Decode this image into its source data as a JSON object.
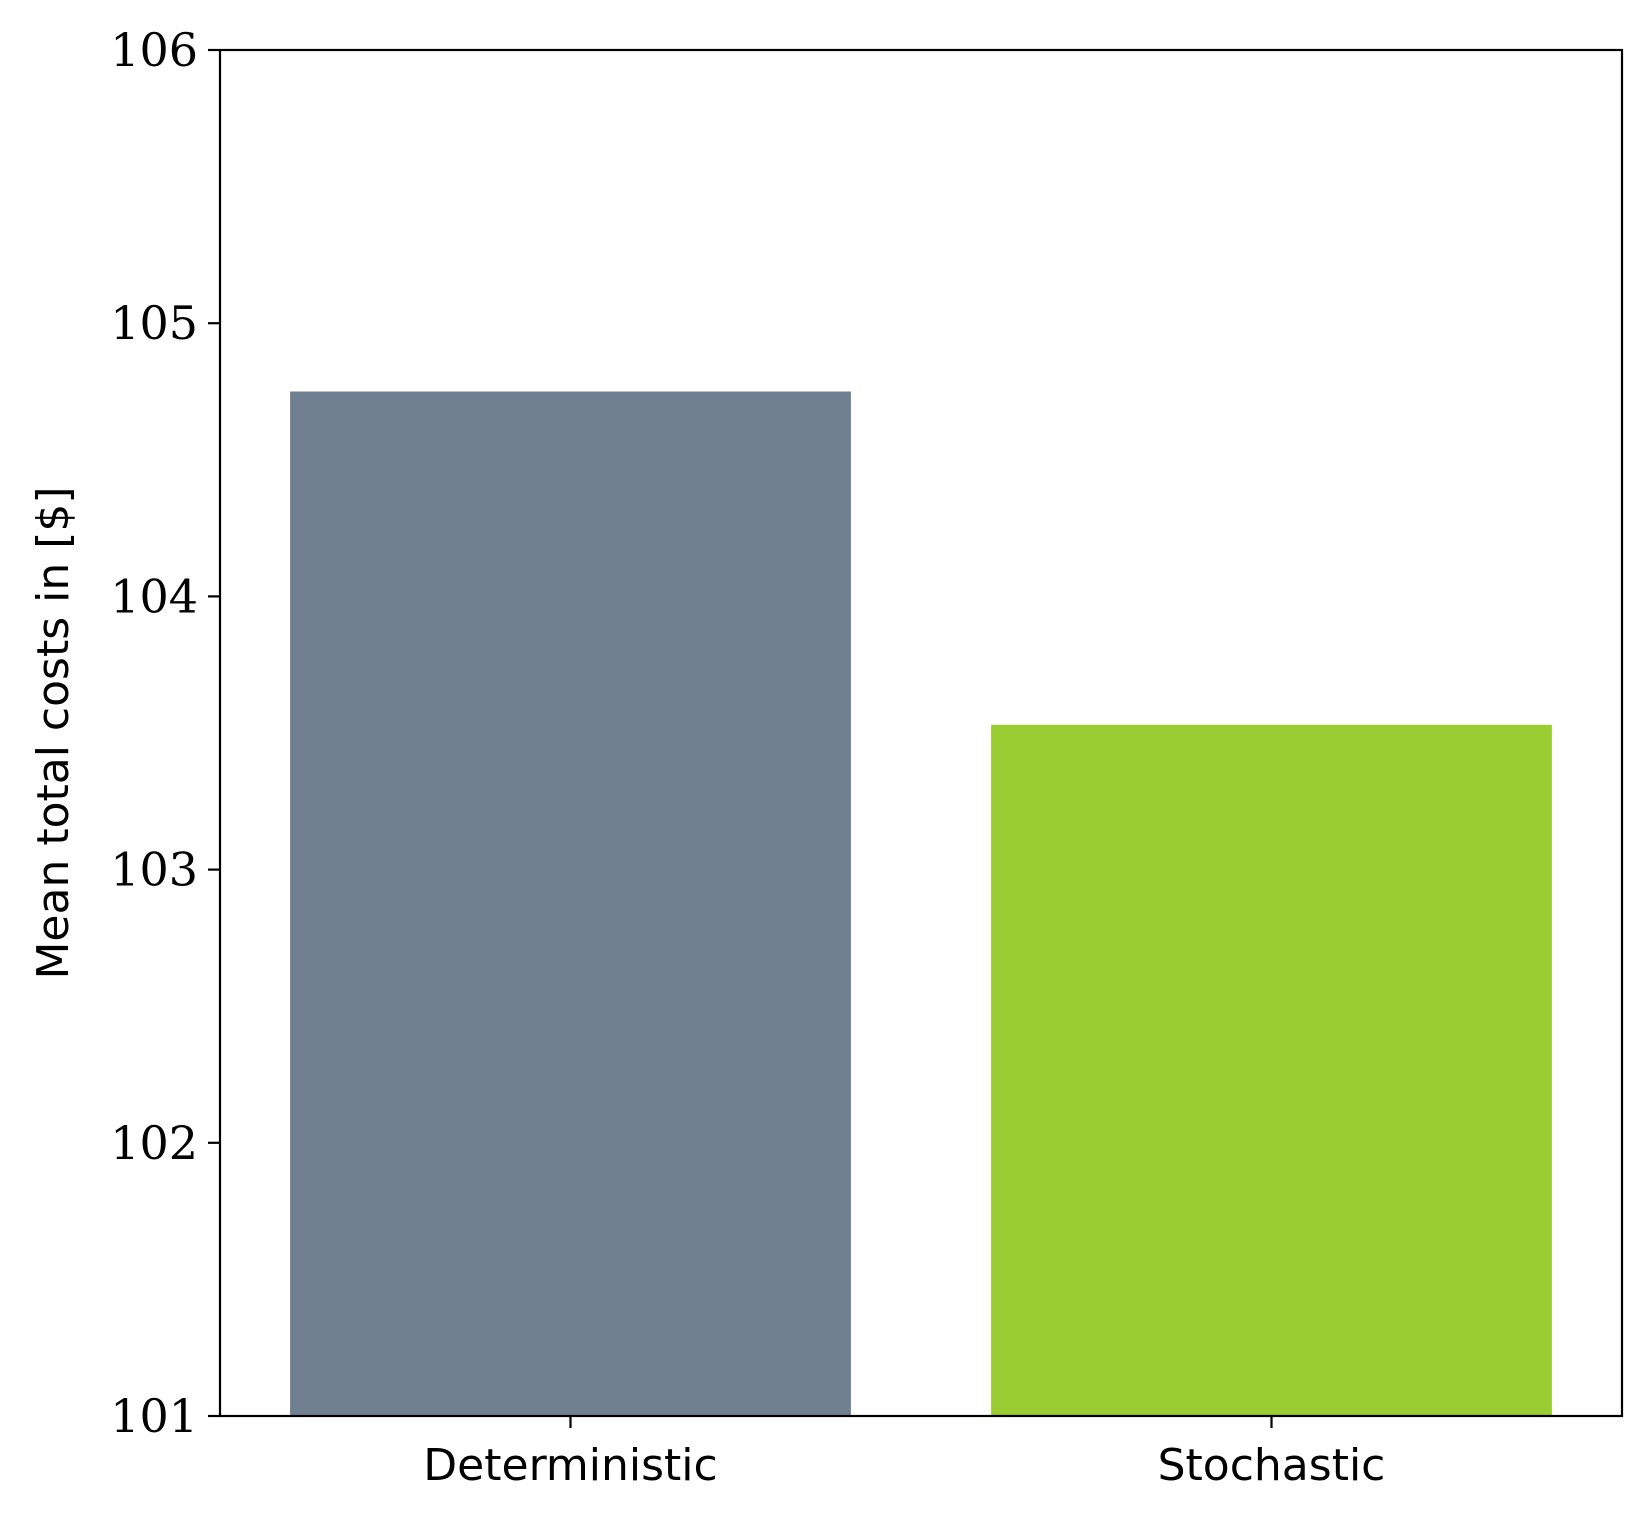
{
  "chart_data": {
    "type": "bar",
    "categories": [
      "Deterministic",
      "Stochastic"
    ],
    "values": [
      104.75,
      103.53
    ],
    "bar_colors": [
      "#708090",
      "#9ACD32"
    ],
    "ylabel": "Mean total costs in [$]",
    "xlabel": "",
    "ylim": [
      101,
      106
    ],
    "yticks": [
      101,
      102,
      103,
      104,
      105,
      106
    ],
    "grid": false,
    "legend": false
  }
}
